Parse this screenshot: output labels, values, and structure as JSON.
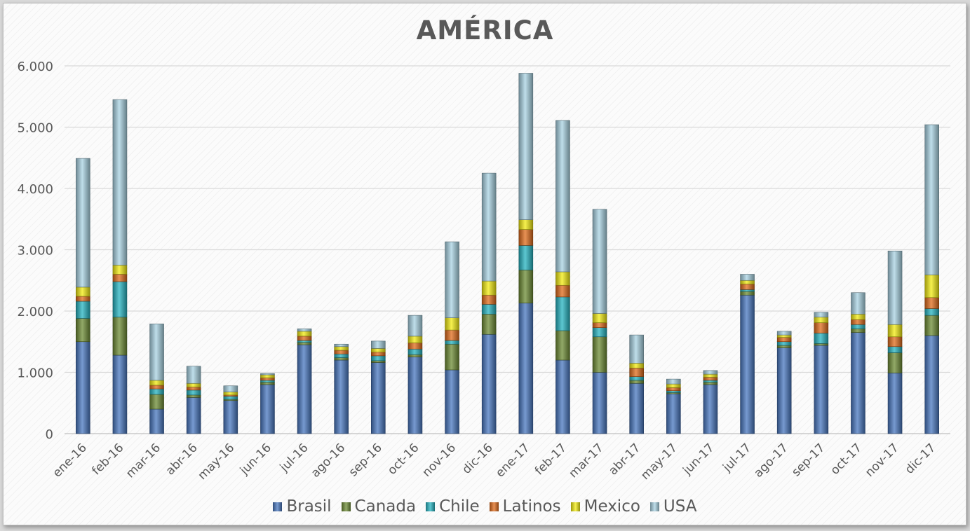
{
  "chart_data": {
    "type": "bar",
    "stacked": true,
    "title": "AMÉRICA",
    "xlabel": "",
    "ylabel": "",
    "ylim": [
      0,
      6000
    ],
    "yticks": [
      0,
      1000,
      2000,
      3000,
      4000,
      5000,
      6000
    ],
    "ytick_labels": [
      "0",
      "1.000",
      "2.000",
      "3.000",
      "4.000",
      "5.000",
      "6.000"
    ],
    "grid": true,
    "legend_position": "bottom",
    "categories": [
      "ene-16",
      "feb-16",
      "mar-16",
      "abr-16",
      "may-16",
      "jun-16",
      "jul-16",
      "ago-16",
      "sep-16",
      "oct-16",
      "nov-16",
      "dic-16",
      "ene-17",
      "feb-17",
      "mar-17",
      "abr-17",
      "may-17",
      "jun-17",
      "jul-17",
      "ago-17",
      "sep-17",
      "oct-17",
      "nov-17",
      "dic-17"
    ],
    "series": [
      {
        "name": "Brasil",
        "color": "#4a78c0",
        "values": [
          1500,
          1280,
          400,
          590,
          540,
          800,
          1450,
          1200,
          1160,
          1250,
          1040,
          1620,
          2130,
          1200,
          1000,
          820,
          650,
          800,
          2260,
          1400,
          1440,
          1650,
          990,
          1600
        ]
      },
      {
        "name": "Canada",
        "color": "#6e8c35",
        "values": [
          380,
          620,
          240,
          40,
          20,
          40,
          40,
          40,
          30,
          40,
          420,
          330,
          540,
          480,
          580,
          50,
          20,
          40,
          60,
          40,
          30,
          60,
          330,
          330
        ]
      },
      {
        "name": "Chile",
        "color": "#27b4c2",
        "values": [
          280,
          580,
          90,
          80,
          50,
          30,
          30,
          60,
          80,
          90,
          60,
          160,
          400,
          550,
          150,
          60,
          30,
          30,
          30,
          60,
          170,
          70,
          100,
          110
        ]
      },
      {
        "name": "Latinos",
        "color": "#e06c1c",
        "values": [
          80,
          120,
          60,
          50,
          20,
          40,
          70,
          60,
          60,
          100,
          170,
          150,
          260,
          190,
          80,
          140,
          50,
          50,
          90,
          70,
          170,
          80,
          160,
          180
        ]
      },
      {
        "name": "Mexico",
        "color": "#f3ec13",
        "values": [
          150,
          150,
          80,
          60,
          50,
          50,
          80,
          60,
          60,
          110,
          200,
          230,
          160,
          220,
          150,
          80,
          60,
          50,
          60,
          40,
          90,
          90,
          200,
          370
        ]
      },
      {
        "name": "USA",
        "color": "#a9d3e3",
        "values": [
          2100,
          2700,
          920,
          280,
          100,
          20,
          40,
          40,
          120,
          340,
          1240,
          1760,
          2390,
          2470,
          1700,
          460,
          80,
          60,
          100,
          60,
          80,
          350,
          1200,
          2450
        ]
      }
    ]
  }
}
